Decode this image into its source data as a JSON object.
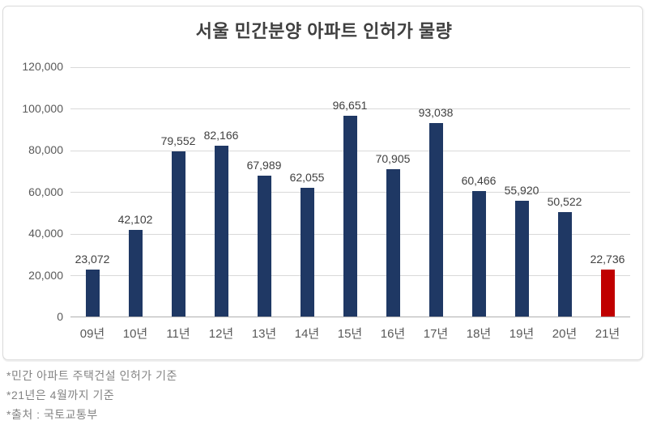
{
  "chart_data": {
    "type": "bar",
    "title": "서울 민간분양 아파트 인허가 물량",
    "categories": [
      "09년",
      "10년",
      "11년",
      "12년",
      "13년",
      "14년",
      "15년",
      "16년",
      "17년",
      "18년",
      "19년",
      "20년",
      "21년"
    ],
    "values": [
      23072,
      42102,
      79552,
      82166,
      67989,
      62055,
      96651,
      70905,
      93038,
      60466,
      55920,
      50522,
      22736
    ],
    "value_labels": [
      "23,072",
      "42,102",
      "79,552",
      "82,166",
      "67,989",
      "62,055",
      "96,651",
      "70,905",
      "93,038",
      "60,466",
      "55,920",
      "50,522",
      "22,736"
    ],
    "xlabel": "",
    "ylabel": "",
    "ylim": [
      0,
      120000
    ],
    "y_ticks": [
      0,
      20000,
      40000,
      60000,
      80000,
      100000,
      120000
    ],
    "y_tick_labels": [
      "0",
      "20,000",
      "40,000",
      "60,000",
      "80,000",
      "100,000",
      "120,000"
    ],
    "grid": true,
    "legend": "none",
    "bar_color_default": "#1f3864",
    "bar_color_highlight": "#c00000",
    "highlight_index": 12
  },
  "footnotes": [
    "*민간 아파트 주택건설 인허가 기준",
    "*21년은 4월까지 기준",
    "*출처 : 국토교통부"
  ],
  "colors": {
    "gridline": "#d9d9d9",
    "axis_line": "#b0b0b0",
    "axis_label": "#595959",
    "value_label": "#404040",
    "title": "#3f3f3f",
    "footnote": "#848484",
    "frame_border": "#d9d9d9",
    "background": "#ffffff"
  }
}
